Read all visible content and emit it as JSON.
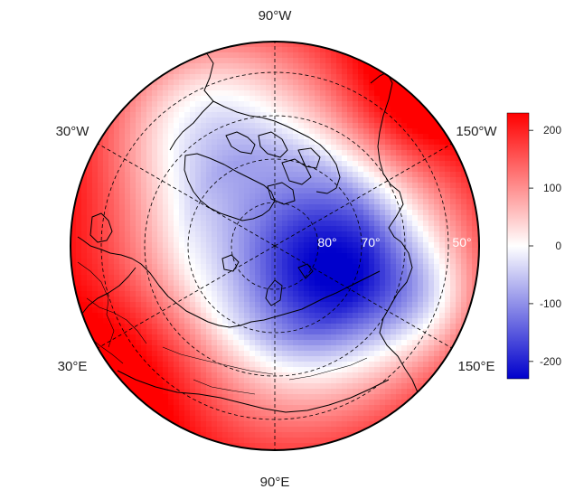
{
  "map": {
    "projection": "north-polar-stereographic",
    "field_min": -230,
    "field_max": 230,
    "longitude_labels": [
      {
        "id": "lon-90w",
        "text": "90°W"
      },
      {
        "id": "lon-30w",
        "text": "30°W"
      },
      {
        "id": "lon-150w",
        "text": "150°W"
      },
      {
        "id": "lon-30e",
        "text": "30°E"
      },
      {
        "id": "lon-150e",
        "text": "150°E"
      },
      {
        "id": "lon-90e",
        "text": "90°E"
      }
    ],
    "latitude_labels": [
      {
        "id": "lat-80",
        "text": "80°"
      },
      {
        "id": "lat-70",
        "text": "70°"
      },
      {
        "id": "lat-50",
        "text": "50°"
      }
    ],
    "colors": {
      "negative": "#0000cc",
      "zero": "#ffffff",
      "positive": "#ff0000",
      "coastline": "#000000"
    }
  },
  "colorbar": {
    "min": -230,
    "max": 230,
    "ticks": [
      "200",
      "100",
      "0",
      "-100",
      "-200"
    ],
    "tick_values": [
      200,
      100,
      0,
      -100,
      -200
    ]
  }
}
